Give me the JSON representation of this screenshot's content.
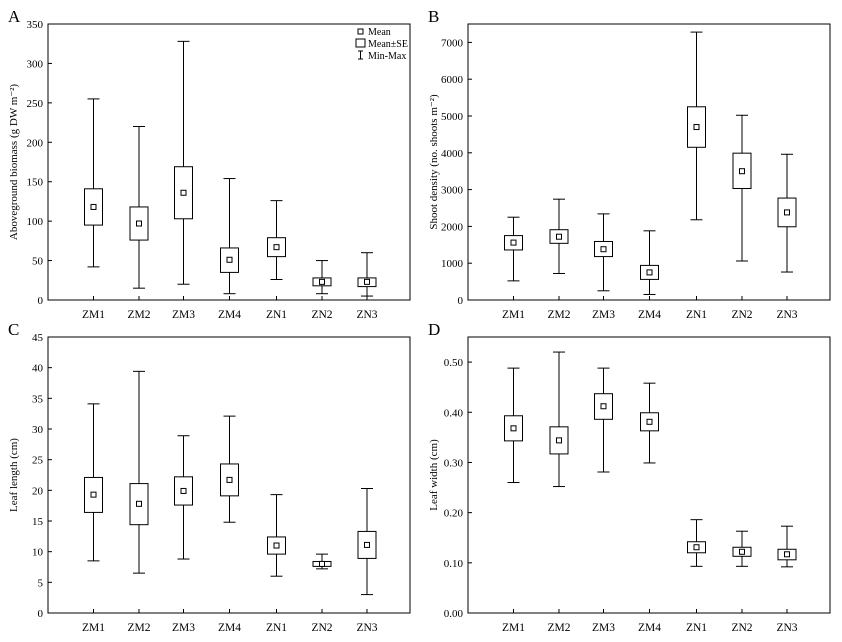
{
  "chart_data": [
    {
      "type": "box",
      "panel_label": "A",
      "ylabel": "Aboveground biomass (g DW m⁻²)",
      "yticks": [
        "0",
        "50",
        "100",
        "150",
        "200",
        "250",
        "300",
        "350"
      ],
      "ylim": [
        0,
        350
      ],
      "categories": [
        "ZM1",
        "ZM2",
        "ZM3",
        "ZM4",
        "ZN1",
        "ZN2",
        "ZN3"
      ],
      "min": [
        42,
        15,
        20,
        8,
        26,
        8,
        5
      ],
      "se_low": [
        95,
        76,
        103,
        35,
        55,
        18,
        17
      ],
      "mean": [
        118,
        97,
        136,
        51,
        67,
        23,
        23
      ],
      "se_high": [
        141,
        118,
        169,
        66,
        79,
        28,
        28
      ],
      "max": [
        255,
        220,
        328,
        154,
        126,
        50,
        60
      ],
      "legend": {
        "position": "top-right",
        "items": [
          {
            "symbol": "point",
            "label": "Mean"
          },
          {
            "symbol": "box",
            "label": "Mean±SE"
          },
          {
            "symbol": "whisker",
            "label": "Min-Max"
          }
        ]
      }
    },
    {
      "type": "box",
      "panel_label": "B",
      "ylabel": "Shoot density (no. shoots m⁻²)",
      "yticks": [
        "0",
        "1000",
        "2000",
        "3000",
        "4000",
        "5000",
        "6000",
        "7000"
      ],
      "ylim": [
        0,
        7500
      ],
      "categories": [
        "ZM1",
        "ZM2",
        "ZM3",
        "ZM4",
        "ZN1",
        "ZN2",
        "ZN3"
      ],
      "min": [
        520,
        720,
        250,
        150,
        2180,
        1060,
        760
      ],
      "se_low": [
        1360,
        1540,
        1180,
        560,
        4150,
        3030,
        1990
      ],
      "mean": [
        1560,
        1720,
        1380,
        750,
        4700,
        3500,
        2380
      ],
      "se_high": [
        1750,
        1910,
        1590,
        940,
        5250,
        3990,
        2770
      ],
      "max": [
        2250,
        2740,
        2340,
        1880,
        7280,
        5020,
        3960
      ]
    },
    {
      "type": "box",
      "panel_label": "C",
      "ylabel": "Leaf length (cm)",
      "yticks": [
        "0",
        "5",
        "10",
        "15",
        "20",
        "25",
        "30",
        "35",
        "40",
        "45"
      ],
      "ylim": [
        0,
        45
      ],
      "categories": [
        "ZM1",
        "ZM2",
        "ZM3",
        "ZM4",
        "ZN1",
        "ZN2",
        "ZN3"
      ],
      "min": [
        8.5,
        6.5,
        8.8,
        14.8,
        6.0,
        7.2,
        3.0
      ],
      "se_low": [
        16.4,
        14.4,
        17.6,
        19.1,
        9.6,
        7.6,
        8.9
      ],
      "mean": [
        19.3,
        17.8,
        19.9,
        21.7,
        11.0,
        8.0,
        11.1
      ],
      "se_high": [
        22.1,
        21.1,
        22.2,
        24.3,
        12.4,
        8.4,
        13.3
      ],
      "max": [
        34.1,
        39.4,
        28.9,
        32.1,
        19.3,
        9.6,
        20.3
      ]
    },
    {
      "type": "box",
      "panel_label": "D",
      "ylabel": "Leaf width (cm)",
      "yticks": [
        "0.00",
        "0.10",
        "0.20",
        "0.30",
        "0.40",
        "0.50"
      ],
      "ylim": [
        0,
        0.55
      ],
      "categories": [
        "ZM1",
        "ZM2",
        "ZM3",
        "ZM4",
        "ZN1",
        "ZN2",
        "ZN3"
      ],
      "min": [
        0.26,
        0.252,
        0.281,
        0.299,
        0.093,
        0.093,
        0.092
      ],
      "se_low": [
        0.343,
        0.317,
        0.386,
        0.363,
        0.12,
        0.113,
        0.106
      ],
      "mean": [
        0.368,
        0.344,
        0.412,
        0.381,
        0.131,
        0.122,
        0.117
      ],
      "se_high": [
        0.393,
        0.371,
        0.437,
        0.399,
        0.142,
        0.131,
        0.127
      ],
      "max": [
        0.488,
        0.52,
        0.488,
        0.458,
        0.186,
        0.163,
        0.173
      ]
    }
  ]
}
